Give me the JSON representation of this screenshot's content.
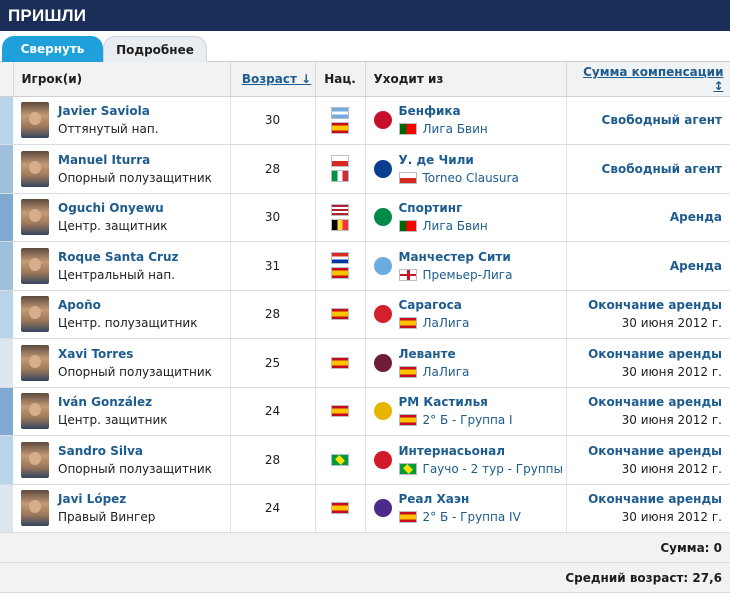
{
  "section_title": "ПРИШЛИ",
  "tabs": [
    {
      "label": "Свернуть"
    },
    {
      "label": "Подробнее"
    }
  ],
  "headers": {
    "player": "Игрок(и)",
    "age": "Возраст ↓",
    "nat": "Нац.",
    "from": "Уходит из",
    "fee": "Сумма компенсации ↕"
  },
  "rows": [
    {
      "name": "Javier Saviola",
      "position": "Оттянутый нап.",
      "age": "30",
      "flags": [
        "ar",
        "es"
      ],
      "club": "Бенфика",
      "club_flag": "pt",
      "league": "Лига Бвин",
      "crest_color": "#c8102e",
      "fee": "Свободный агент",
      "fee_date": ""
    },
    {
      "name": "Manuel Iturra",
      "position": "Опорный полузащитник",
      "age": "28",
      "flags": [
        "cl",
        "it"
      ],
      "club": "У. де Чили",
      "club_flag": "cl",
      "league": "Torneo Clausura",
      "crest_color": "#0b3d91",
      "fee": "Свободный агент",
      "fee_date": ""
    },
    {
      "name": "Oguchi Onyewu",
      "position": "Центр. защитник",
      "age": "30",
      "flags": [
        "us",
        "be"
      ],
      "club": "Спортинг",
      "club_flag": "pt",
      "league": "Лига Бвин",
      "crest_color": "#008a47",
      "fee": "Аренда",
      "fee_date": ""
    },
    {
      "name": "Roque Santa Cruz",
      "position": "Центральный нап.",
      "age": "31",
      "flags": [
        "py",
        "es"
      ],
      "club": "Манчестер Сити",
      "club_flag": "en",
      "league": "Премьер-Лига",
      "crest_color": "#6cabdd",
      "fee": "Аренда",
      "fee_date": ""
    },
    {
      "name": "Apoño",
      "position": "Центр. полузащитник",
      "age": "28",
      "flags": [
        "es"
      ],
      "club": "Сарагоса",
      "club_flag": "es",
      "league": "ЛаЛига",
      "crest_color": "#d4202a",
      "fee": "Окончание аренды",
      "fee_date": "30 июня 2012 г."
    },
    {
      "name": "Xavi Torres",
      "position": "Опорный полузащитник",
      "age": "25",
      "flags": [
        "es"
      ],
      "club": "Леванте",
      "club_flag": "es",
      "league": "ЛаЛига",
      "crest_color": "#6e1c3a",
      "fee": "Окончание аренды",
      "fee_date": "30 июня 2012 г."
    },
    {
      "name": "Iván González",
      "position": "Центр. защитник",
      "age": "24",
      "flags": [
        "es"
      ],
      "club": "РМ Кастилья",
      "club_flag": "es",
      "league": "2° Б - Группа I",
      "crest_color": "#e7b400",
      "fee": "Окончание аренды",
      "fee_date": "30 июня 2012 г."
    },
    {
      "name": "Sandro Silva",
      "position": "Опорный полузащитник",
      "age": "28",
      "flags": [
        "br"
      ],
      "club": "Интернасьонал",
      "club_flag": "br",
      "league": "Гаучо - 2 тур - Группы",
      "crest_color": "#d31a2b",
      "fee": "Окончание аренды",
      "fee_date": "30 июня 2012 г."
    },
    {
      "name": "Javi López",
      "position": "Правый Вингер",
      "age": "24",
      "flags": [
        "es"
      ],
      "club": "Реал Хаэн",
      "club_flag": "es",
      "league": "2° Б - Группа IV",
      "crest_color": "#4a2b8a",
      "fee": "Окончание аренды",
      "fee_date": "30 июня 2012 г."
    }
  ],
  "footer": {
    "sum": "Сумма: 0",
    "avg_age": "Средний возраст: 27,6"
  }
}
